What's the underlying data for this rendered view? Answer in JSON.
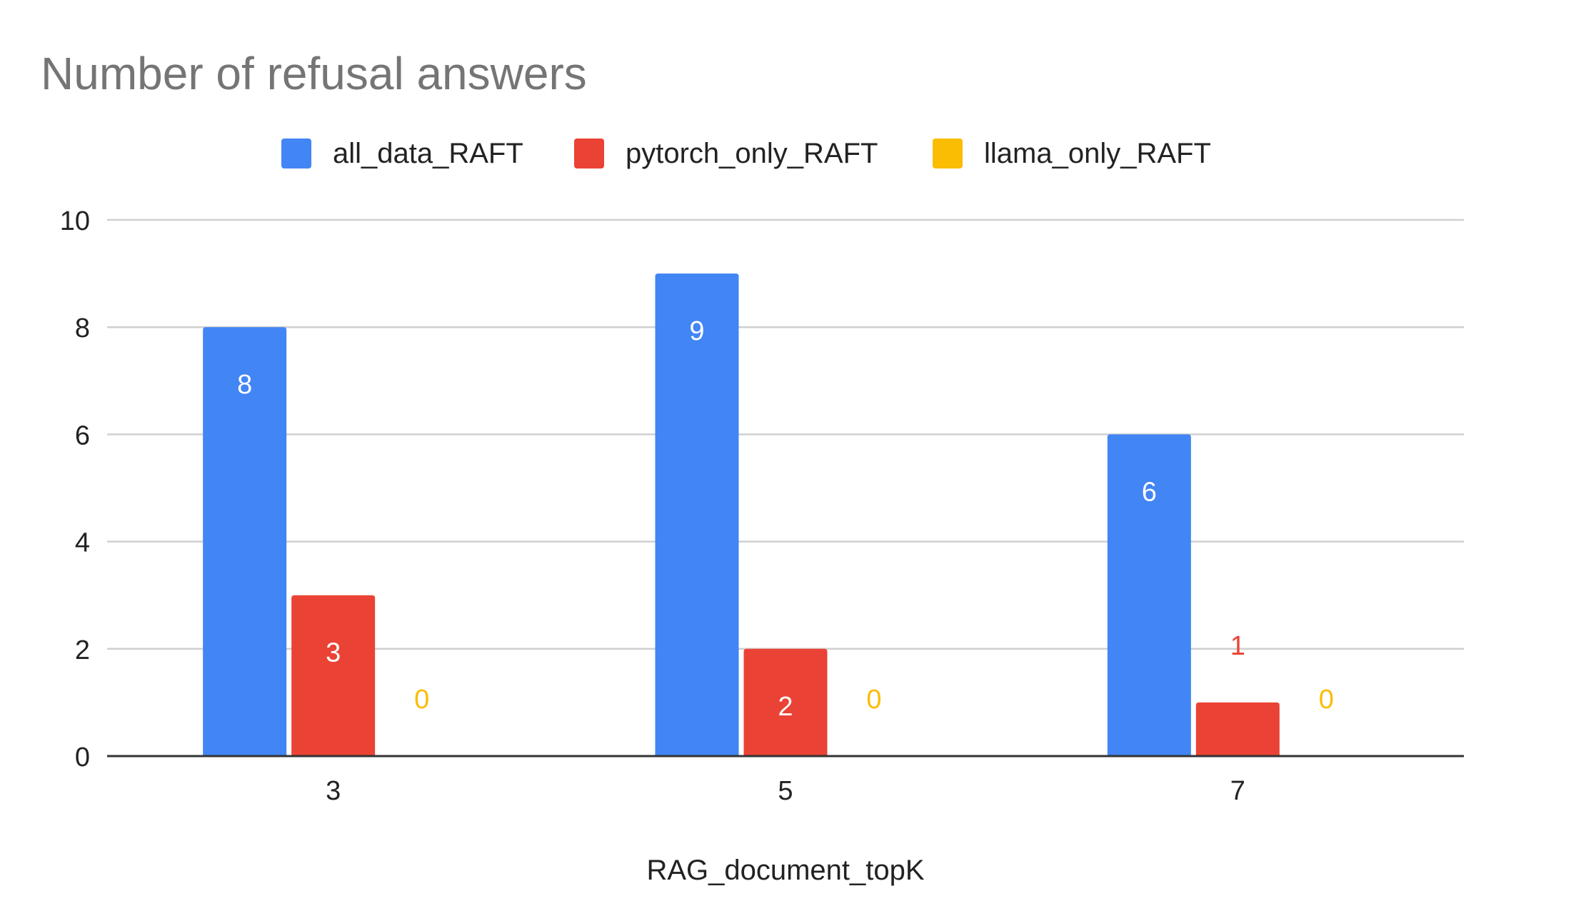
{
  "chart_data": {
    "type": "bar",
    "title": "Number of refusal answers",
    "xlabel": "RAG_document_topK",
    "ylabel": "",
    "categories": [
      "3",
      "5",
      "7"
    ],
    "series": [
      {
        "name": "all_data_RAFT",
        "values": [
          8,
          9,
          6
        ],
        "color": "#4285F4"
      },
      {
        "name": "pytorch_only_RAFT",
        "values": [
          3,
          2,
          1
        ],
        "color": "#EA4335"
      },
      {
        "name": "llama_only_RAFT",
        "values": [
          0,
          0,
          0
        ],
        "color": "#FBBC04"
      }
    ],
    "ylim": [
      0,
      10
    ],
    "yticks": [
      "0",
      "2",
      "4",
      "6",
      "8",
      "10"
    ],
    "grid": true,
    "legend_position": "top",
    "data_labels": true
  }
}
